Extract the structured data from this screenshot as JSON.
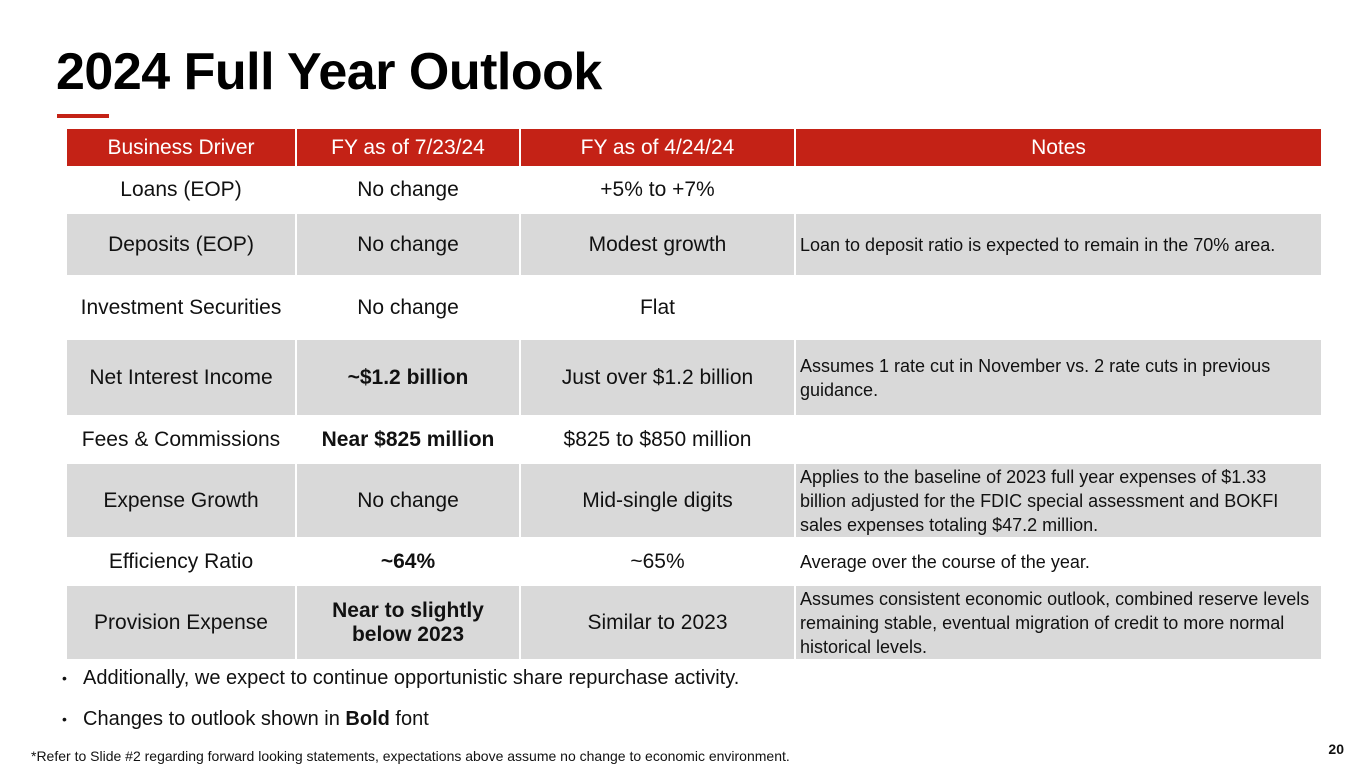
{
  "slide": {
    "title": "2024 Full Year Outlook",
    "page_number": "20",
    "accent_color": "#c42216",
    "shade_color": "#d9d9d9"
  },
  "table": {
    "headers": [
      "Business Driver",
      "FY as of 7/23/24",
      "FY as of 4/24/24",
      "Notes"
    ],
    "rows": [
      {
        "driver": "Loans (EOP)",
        "current": "No change",
        "prior": "+5% to +7%",
        "notes": ""
      },
      {
        "driver": "Deposits (EOP)",
        "current": "No change",
        "prior": "Modest growth",
        "notes": "Loan to deposit ratio is expected to remain in the 70% area."
      },
      {
        "driver": "Investment Securities",
        "current": "No change",
        "prior": "Flat",
        "notes": ""
      },
      {
        "driver": "Net Interest Income",
        "current": "~$1.2 billion",
        "prior": "Just over $1.2 billion",
        "notes": "Assumes 1 rate cut in November vs. 2 rate cuts in previous guidance."
      },
      {
        "driver": "Fees & Commissions",
        "current": "Near $825 million",
        "prior": "$825 to $850 million",
        "notes": ""
      },
      {
        "driver": "Expense Growth",
        "current": "No change",
        "prior": "Mid-single digits",
        "notes": "Applies to the baseline of 2023 full year expenses of $1.33 billion adjusted for the FDIC special assessment and BOKFI sales expenses totaling $47.2 million."
      },
      {
        "driver": "Efficiency Ratio",
        "current": "~64%",
        "prior": "~65%",
        "notes": "Average over the course of the year."
      },
      {
        "driver": "Provision Expense",
        "current": "Near to slightly below 2023",
        "prior": "Similar to 2023",
        "notes": "Assumes consistent economic outlook, combined reserve levels remaining stable, eventual migration of credit to more normal historical levels."
      }
    ]
  },
  "bullets": {
    "bullet_char": "•",
    "item1": "Additionally, we expect to continue opportunistic share repurchase activity.",
    "item2_prefix": "Changes to outlook shown in ",
    "item2_bold": "Bold",
    "item2_suffix": " font"
  },
  "footnote": "*Refer to Slide #2 regarding forward looking statements, expectations above assume no change to economic environment."
}
